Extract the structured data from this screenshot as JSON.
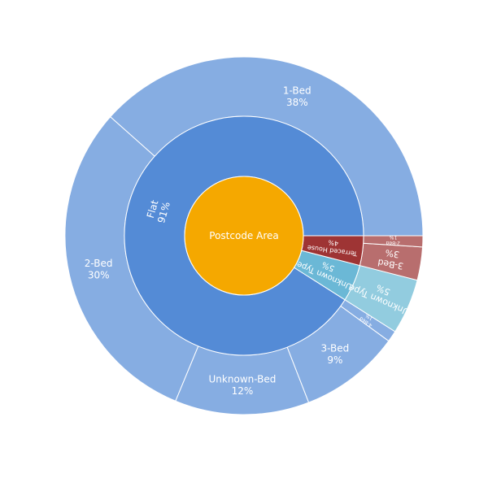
{
  "chart_data": {
    "type": "sunburst",
    "root": {
      "label": "Postcode Area",
      "color": "#F5A800"
    },
    "levels": [
      {
        "label": "Flat",
        "percent": 91,
        "color": "#548BD6",
        "children": [
          {
            "label": "1-Bed",
            "percent": 38,
            "color": "#86ADE2"
          },
          {
            "label": "2-Bed",
            "percent": 30,
            "color": "#86ADE2"
          },
          {
            "label": "Unknown-Bed",
            "percent": 12,
            "color": "#86ADE2"
          },
          {
            "label": "3-Bed",
            "percent": 9,
            "color": "#86ADE2"
          },
          {
            "label": "4-Bed",
            "percent": 1,
            "color": "#86ADE2"
          }
        ]
      },
      {
        "label": "Unknown Type",
        "percent": 5,
        "color": "#6BB8D6",
        "children": [
          {
            "label": "Unknown Type",
            "percent": 5,
            "color": "#92CCDF"
          }
        ]
      },
      {
        "label": "Terraced House",
        "percent": 4,
        "color": "#9E3434",
        "children": [
          {
            "label": "3-Bed",
            "percent": 3,
            "color": "#B86E6E"
          },
          {
            "label": "2-Bed",
            "percent": 1,
            "color": "#B86E6E"
          }
        ]
      }
    ]
  }
}
